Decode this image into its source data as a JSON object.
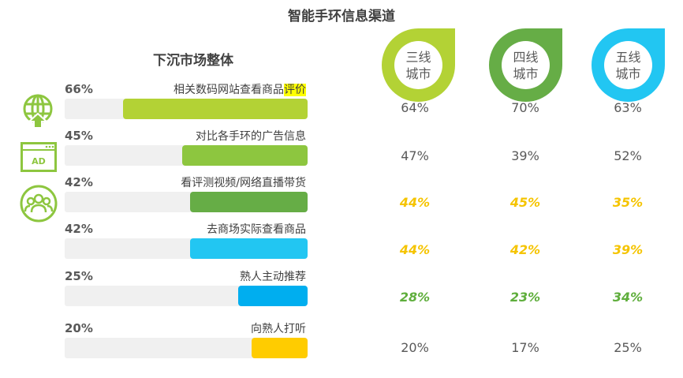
{
  "chart_data": {
    "type": "bar",
    "title": "智能手环信息渠道",
    "subtitle": "下沉市场整体",
    "categories": [
      "相关数码网站查看商品评价",
      "对比各手环的广告信息",
      "看评测视频/网络直播带货",
      "去商场实际查看商品",
      "熟人主动推荐",
      "向熟人打听"
    ],
    "highlight_text": "评价",
    "values": [
      66,
      45,
      42,
      42,
      25,
      20
    ],
    "value_labels": [
      "66%",
      "45%",
      "42%",
      "42%",
      "25%",
      "20%"
    ],
    "bar_colors": [
      "#b3d235",
      "#8dc63f",
      "#66ad46",
      "#22c6f2",
      "#00aeef",
      "#ffcc00"
    ],
    "xlim": [
      0,
      100
    ],
    "icons": [
      "globe-upload-icon",
      "ad-window-icon",
      "people-group-icon"
    ],
    "icon_color": "#8dc63f",
    "cities": [
      {
        "name_l1": "三线",
        "name_l2": "城市",
        "color": "#b3d235",
        "values": [
          "64%",
          "47%",
          "44%",
          "44%",
          "28%",
          "20%"
        ]
      },
      {
        "name_l1": "四线",
        "name_l2": "城市",
        "color": "#66ad46",
        "values": [
          "70%",
          "39%",
          "45%",
          "42%",
          "23%",
          "17%"
        ]
      },
      {
        "name_l1": "五线",
        "name_l2": "城市",
        "color": "#22c6f2",
        "values": [
          "63%",
          "52%",
          "35%",
          "39%",
          "34%",
          "25%"
        ]
      }
    ],
    "row_value_colors": [
      "#595959",
      "#595959",
      "#f5c400",
      "#f5c400",
      "#5fae3c",
      "#595959"
    ]
  }
}
